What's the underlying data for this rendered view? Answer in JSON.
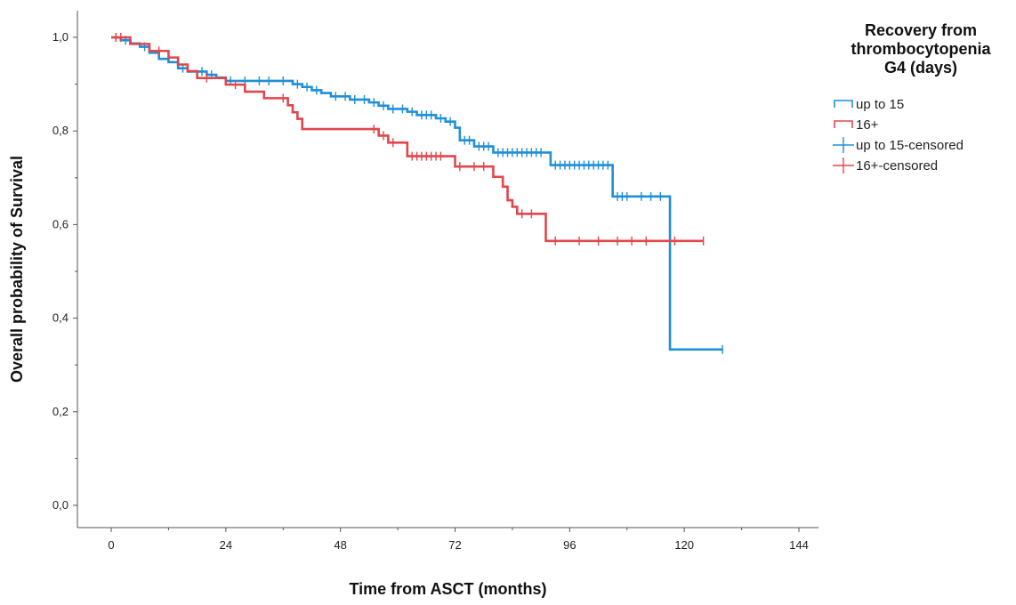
{
  "chart_data": {
    "type": "line",
    "subtype": "kaplan-meier",
    "title": "",
    "xlabel": "Time from ASCT (months)",
    "ylabel": "Overall probability of Survival",
    "xlim": [
      0,
      144
    ],
    "ylim": [
      0,
      1
    ],
    "x_ticks": [
      0,
      24,
      48,
      72,
      96,
      120,
      144
    ],
    "y_ticks": [
      0.0,
      0.2,
      0.4,
      0.6,
      0.8,
      1.0
    ],
    "x_tick_labels": [
      "0",
      "24",
      "48",
      "72",
      "96",
      "120",
      "144"
    ],
    "y_tick_labels": [
      "0,0",
      "0,2",
      "0,4",
      "0,6",
      "0,8",
      "1,0"
    ],
    "grid": false,
    "legend": {
      "title_lines": [
        "Recovery from",
        "thrombocytopenia",
        "G4 (days)"
      ],
      "position": "right",
      "entries": [
        {
          "label": "up to 15",
          "kind": "step",
          "color": "#1f8fd8"
        },
        {
          "label": "16+",
          "kind": "step",
          "color": "#e0474c"
        },
        {
          "label": "up to 15-censored",
          "kind": "censor",
          "color": "#1f8fd8"
        },
        {
          "label": "16+-censored",
          "kind": "censor",
          "color": "#e0474c"
        }
      ]
    },
    "series": [
      {
        "name": "up to 15",
        "color": "#1f8fd8",
        "steps": [
          [
            0,
            1.0
          ],
          [
            2,
            0.994
          ],
          [
            4,
            0.987
          ],
          [
            6,
            0.98
          ],
          [
            8,
            0.967
          ],
          [
            10,
            0.954
          ],
          [
            12,
            0.947
          ],
          [
            14,
            0.934
          ],
          [
            16,
            0.927
          ],
          [
            20,
            0.92
          ],
          [
            22,
            0.914
          ],
          [
            24,
            0.907
          ],
          [
            38,
            0.9
          ],
          [
            40,
            0.894
          ],
          [
            42,
            0.887
          ],
          [
            44,
            0.881
          ],
          [
            46,
            0.874
          ],
          [
            50,
            0.867
          ],
          [
            54,
            0.861
          ],
          [
            56,
            0.854
          ],
          [
            58,
            0.847
          ],
          [
            62,
            0.841
          ],
          [
            64,
            0.834
          ],
          [
            68,
            0.827
          ],
          [
            70,
            0.82
          ],
          [
            72,
            0.807
          ],
          [
            73,
            0.78
          ],
          [
            76,
            0.767
          ],
          [
            80,
            0.754
          ],
          [
            92,
            0.727
          ],
          [
            105,
            0.66
          ],
          [
            117,
            0.333
          ],
          [
            128,
            0.333
          ]
        ],
        "censored": [
          [
            1,
            1.0
          ],
          [
            3,
            0.994
          ],
          [
            7,
            0.98
          ],
          [
            15,
            0.934
          ],
          [
            19,
            0.927
          ],
          [
            21,
            0.92
          ],
          [
            25,
            0.907
          ],
          [
            28,
            0.907
          ],
          [
            31,
            0.907
          ],
          [
            33,
            0.907
          ],
          [
            36,
            0.907
          ],
          [
            39,
            0.9
          ],
          [
            41,
            0.894
          ],
          [
            43,
            0.887
          ],
          [
            47,
            0.874
          ],
          [
            49,
            0.874
          ],
          [
            51,
            0.867
          ],
          [
            53,
            0.867
          ],
          [
            55,
            0.861
          ],
          [
            57,
            0.854
          ],
          [
            59,
            0.847
          ],
          [
            61,
            0.847
          ],
          [
            63,
            0.841
          ],
          [
            65,
            0.834
          ],
          [
            66,
            0.834
          ],
          [
            67,
            0.834
          ],
          [
            69,
            0.827
          ],
          [
            71,
            0.82
          ],
          [
            74,
            0.78
          ],
          [
            75,
            0.78
          ],
          [
            77,
            0.767
          ],
          [
            78,
            0.767
          ],
          [
            79,
            0.767
          ],
          [
            81,
            0.754
          ],
          [
            82,
            0.754
          ],
          [
            83,
            0.754
          ],
          [
            84,
            0.754
          ],
          [
            85,
            0.754
          ],
          [
            86,
            0.754
          ],
          [
            87,
            0.754
          ],
          [
            88,
            0.754
          ],
          [
            89,
            0.754
          ],
          [
            90,
            0.754
          ],
          [
            93,
            0.727
          ],
          [
            94,
            0.727
          ],
          [
            95,
            0.727
          ],
          [
            96,
            0.727
          ],
          [
            97,
            0.727
          ],
          [
            98,
            0.727
          ],
          [
            99,
            0.727
          ],
          [
            100,
            0.727
          ],
          [
            101,
            0.727
          ],
          [
            102,
            0.727
          ],
          [
            103,
            0.727
          ],
          [
            104,
            0.727
          ],
          [
            106,
            0.66
          ],
          [
            107,
            0.66
          ],
          [
            108,
            0.66
          ],
          [
            111,
            0.66
          ],
          [
            113,
            0.66
          ],
          [
            115,
            0.66
          ],
          [
            128,
            0.333
          ]
        ]
      },
      {
        "name": "16+",
        "color": "#e0474c",
        "steps": [
          [
            0,
            1.0
          ],
          [
            4,
            0.986
          ],
          [
            8,
            0.971
          ],
          [
            12,
            0.957
          ],
          [
            14,
            0.942
          ],
          [
            16,
            0.928
          ],
          [
            18,
            0.913
          ],
          [
            24,
            0.899
          ],
          [
            28,
            0.884
          ],
          [
            32,
            0.87
          ],
          [
            37,
            0.855
          ],
          [
            38,
            0.84
          ],
          [
            39,
            0.826
          ],
          [
            40,
            0.804
          ],
          [
            56,
            0.79
          ],
          [
            58,
            0.775
          ],
          [
            62,
            0.746
          ],
          [
            72,
            0.724
          ],
          [
            80,
            0.702
          ],
          [
            82,
            0.681
          ],
          [
            83,
            0.652
          ],
          [
            84,
            0.638
          ],
          [
            85,
            0.623
          ],
          [
            91,
            0.565
          ],
          [
            124,
            0.565
          ]
        ],
        "censored": [
          [
            1,
            1.0
          ],
          [
            2,
            1.0
          ],
          [
            10,
            0.971
          ],
          [
            20,
            0.913
          ],
          [
            26,
            0.899
          ],
          [
            36,
            0.87
          ],
          [
            55,
            0.804
          ],
          [
            57,
            0.79
          ],
          [
            59,
            0.775
          ],
          [
            63,
            0.746
          ],
          [
            64,
            0.746
          ],
          [
            65,
            0.746
          ],
          [
            66,
            0.746
          ],
          [
            67,
            0.746
          ],
          [
            68,
            0.746
          ],
          [
            69,
            0.746
          ],
          [
            73,
            0.724
          ],
          [
            76,
            0.724
          ],
          [
            78,
            0.724
          ],
          [
            86,
            0.623
          ],
          [
            88,
            0.623
          ],
          [
            93,
            0.565
          ],
          [
            98,
            0.565
          ],
          [
            102,
            0.565
          ],
          [
            106,
            0.565
          ],
          [
            109,
            0.565
          ],
          [
            112,
            0.565
          ],
          [
            118,
            0.565
          ],
          [
            124,
            0.565
          ]
        ]
      }
    ]
  }
}
